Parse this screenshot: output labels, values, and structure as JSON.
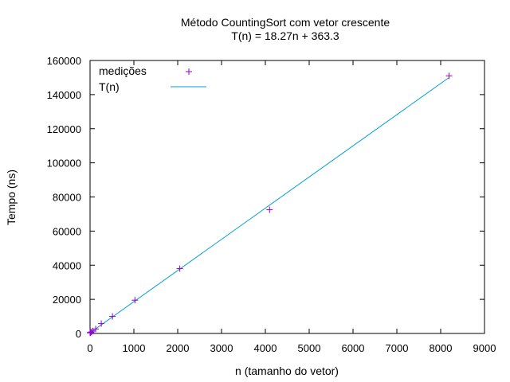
{
  "chart_data": {
    "type": "scatter",
    "title": "Método CountingSort com vetor crescente",
    "subtitle": "T(n) = 18.27n + 363.3",
    "xlabel": "n (tamanho do vetor)",
    "ylabel": "Tempo (ns)",
    "xlim": [
      0,
      9000
    ],
    "ylim": [
      0,
      160000
    ],
    "x_ticks": [
      0,
      1000,
      2000,
      3000,
      4000,
      5000,
      6000,
      7000,
      8000,
      9000
    ],
    "y_ticks": [
      0,
      20000,
      40000,
      60000,
      80000,
      100000,
      120000,
      140000,
      160000
    ],
    "grid": false,
    "legend_position": "top-left",
    "series": [
      {
        "name": "medições",
        "kind": "points",
        "marker": "plus",
        "color": "#9400d3",
        "x": [
          1,
          2,
          4,
          8,
          16,
          32,
          64,
          128,
          256,
          512,
          1024,
          2048,
          4096,
          8192
        ],
        "y": [
          400,
          450,
          420,
          500,
          650,
          900,
          1500,
          2600,
          5800,
          10000,
          19500,
          38000,
          72500,
          151000
        ]
      },
      {
        "name": "T(n)",
        "kind": "line",
        "color": "#00a0d8",
        "slope": 18.27,
        "intercept": 363.3,
        "x_range": [
          0,
          8192
        ]
      }
    ]
  }
}
